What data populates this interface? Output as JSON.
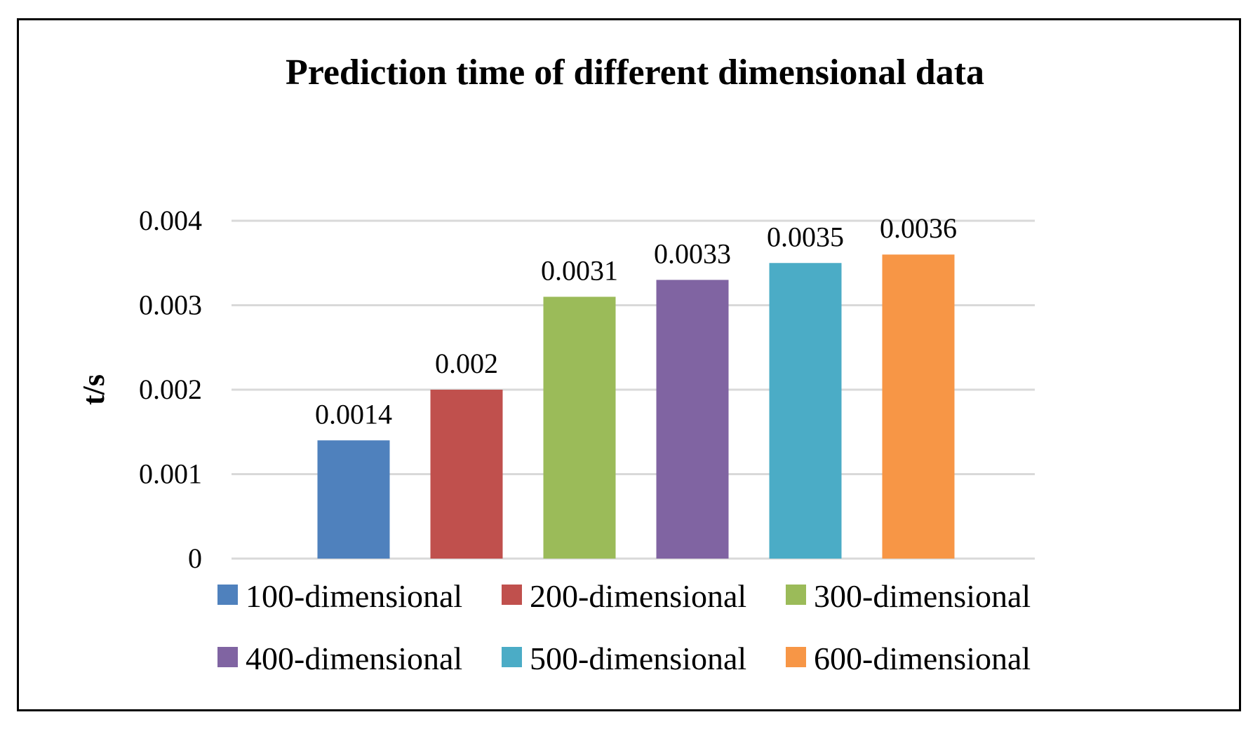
{
  "chart_data": {
    "type": "bar",
    "title": "Prediction  time  of different  dimensional  data",
    "xlabel": "",
    "ylabel": "t/s",
    "ylim": [
      0,
      0.004
    ],
    "yticks": [
      "0",
      "0.001",
      "0.002",
      "0.003",
      "0.004"
    ],
    "grid": true,
    "legend_position": "bottom",
    "series": [
      {
        "name": "100-dimensional",
        "value": 0.0014,
        "label": "0.0014",
        "color": "#4f81bd"
      },
      {
        "name": "200-dimensional",
        "value": 0.002,
        "label": "0.002",
        "color": "#c0504d"
      },
      {
        "name": "300-dimensional",
        "value": 0.0031,
        "label": "0.0031",
        "color": "#9bbb59"
      },
      {
        "name": "400-dimensional",
        "value": 0.0033,
        "label": "0.0033",
        "color": "#8064a2"
      },
      {
        "name": "500-dimensional",
        "value": 0.0035,
        "label": "0.0035",
        "color": "#4bacc6"
      },
      {
        "name": "600-dimensional",
        "value": 0.0036,
        "label": "0.0036",
        "color": "#f79646"
      }
    ]
  }
}
